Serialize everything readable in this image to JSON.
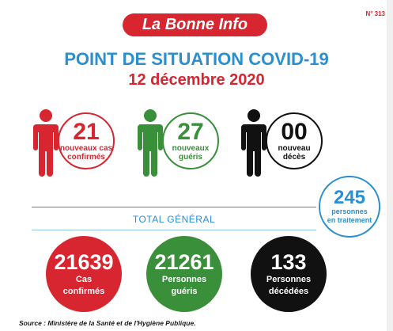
{
  "header": {
    "brand": "La Bonne Info",
    "issue": "N° 313"
  },
  "title": "POINT DE SITUATION COVID-19",
  "date": "12 décembre 2020",
  "daily": [
    {
      "value": "21",
      "label_line1": "nouveaux cas",
      "label_line2": "confirmés",
      "color": "#d7262f"
    },
    {
      "value": "27",
      "label_line1": "nouveaux",
      "label_line2": "guéris",
      "color": "#3a8f3a"
    },
    {
      "value": "00",
      "label_line1": "nouveau",
      "label_line2": "décès",
      "color": "#111111"
    }
  ],
  "treatment": {
    "value": "245",
    "label_line1": "personnes",
    "label_line2": "en traitement",
    "color": "#2a8fd0"
  },
  "total_label": "TOTAL GÉNÉRAL",
  "totals": [
    {
      "value": "21639",
      "label_line1": "Cas",
      "label_line2": "confirmés",
      "color": "#d7262f"
    },
    {
      "value": "21261",
      "label_line1": "Personnes",
      "label_line2": "guéris",
      "color": "#3a8f3a"
    },
    {
      "value": "133",
      "label_line1": "Personnes",
      "label_line2": "décédées",
      "color": "#111111"
    }
  ],
  "source": "Source : Ministère de la Santé et de l'Hygiène Publique.",
  "icons": [
    "person-icon"
  ]
}
